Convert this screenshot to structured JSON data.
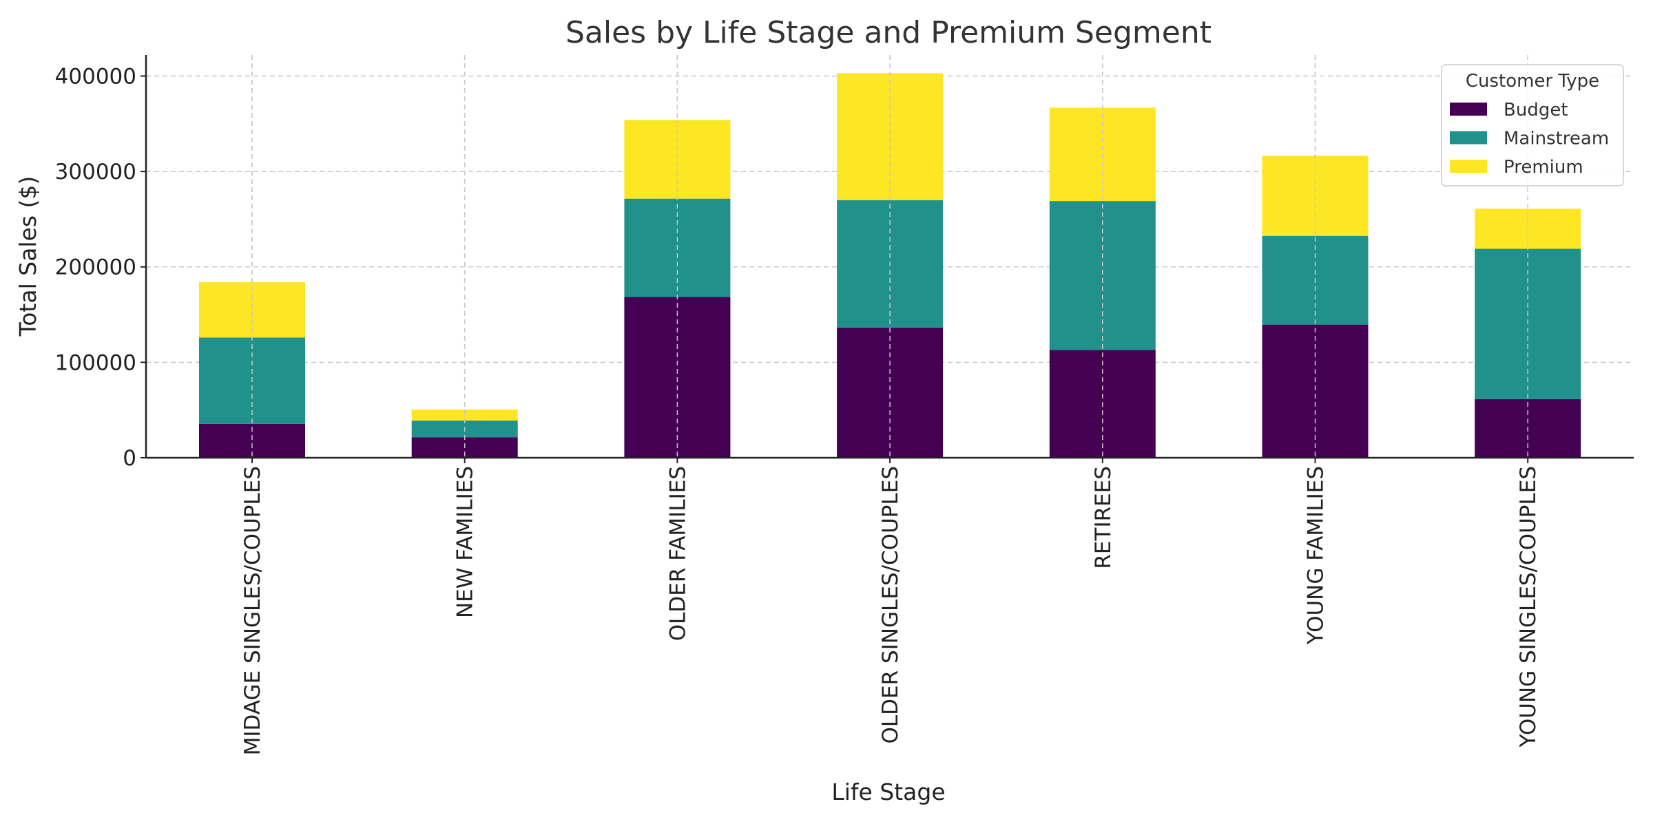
{
  "chart_data": {
    "type": "bar",
    "stacked": true,
    "title": "Sales by Life Stage and Premium Segment",
    "xlabel": "Life Stage",
    "ylabel": "Total Sales ($)",
    "ylim": [
      0,
      422000
    ],
    "yticks": [
      0,
      100000,
      200000,
      300000,
      400000
    ],
    "ytick_labels": [
      "0",
      "100000",
      "200000",
      "300000",
      "400000"
    ],
    "grid": true,
    "legend_title": "Customer Type",
    "legend_position": "top-right",
    "categories": [
      "MIDAGE SINGLES/COUPLES",
      "NEW FAMILIES",
      "OLDER FAMILIES",
      "OLDER SINGLES/COUPLES",
      "RETIREES",
      "YOUNG FAMILIES",
      "YOUNG SINGLES/COUPLES"
    ],
    "series": [
      {
        "name": "Budget",
        "color": "#440154",
        "values": [
          35500,
          21500,
          168500,
          136500,
          113000,
          139500,
          61500
        ]
      },
      {
        "name": "Mainstream",
        "color": "#21918c",
        "values": [
          90500,
          17500,
          103000,
          133500,
          156000,
          93000,
          157500
        ]
      },
      {
        "name": "Premium",
        "color": "#fde725",
        "values": [
          58000,
          11500,
          82500,
          133000,
          98000,
          84000,
          42000
        ]
      }
    ]
  }
}
